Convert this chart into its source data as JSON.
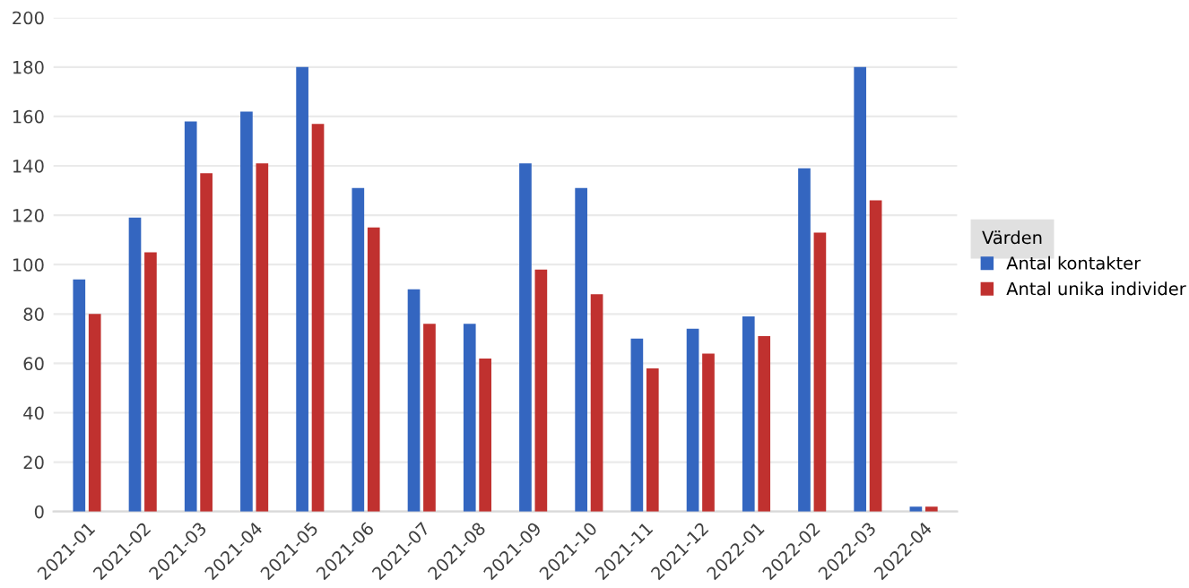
{
  "chart_data": {
    "type": "bar",
    "categories": [
      "2021-01",
      "2021-02",
      "2021-03",
      "2021-04",
      "2021-05",
      "2021-06",
      "2021-07",
      "2021-08",
      "2021-09",
      "2021-10",
      "2021-11",
      "2021-12",
      "2022-01",
      "2022-02",
      "2022-03",
      "2022-04"
    ],
    "series": [
      {
        "name": "Antal kontakter",
        "color": "#3466c0",
        "values": [
          94,
          119,
          158,
          162,
          180,
          131,
          90,
          76,
          141,
          131,
          70,
          74,
          79,
          139,
          180,
          2
        ]
      },
      {
        "name": "Antal unika individer",
        "color": "#c0312f",
        "values": [
          80,
          105,
          137,
          141,
          157,
          115,
          76,
          62,
          98,
          88,
          58,
          64,
          71,
          113,
          126,
          2
        ]
      }
    ],
    "legend_title": "Värden",
    "legend": "right",
    "ylim": [
      0,
      200
    ],
    "yticks": [
      0,
      20,
      40,
      60,
      80,
      100,
      120,
      140,
      160,
      180,
      200
    ],
    "grid": "y"
  }
}
